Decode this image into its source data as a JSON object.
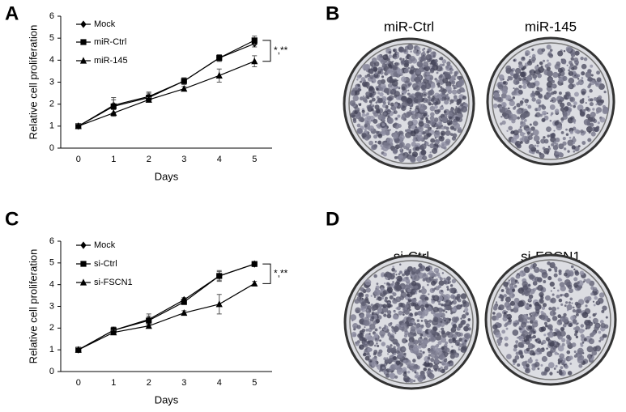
{
  "chart_data": [
    {
      "type": "line",
      "xlabel": "Days",
      "ylabel": "Relative cell proliferation",
      "x": [
        0,
        1,
        2,
        3,
        4,
        5
      ],
      "xlim": [
        -0.5,
        5.5
      ],
      "xticks": [
        0,
        1,
        2,
        3,
        4,
        5
      ],
      "ylim": [
        0,
        6
      ],
      "yticks": [
        0,
        1,
        2,
        3,
        4,
        5,
        6
      ],
      "annotation": "*,**",
      "series": [
        {
          "name": "Mock",
          "color": "#000000",
          "marker": "diamond",
          "values": [
            1,
            1.95,
            2.35,
            3.05,
            4.1,
            4.75
          ],
          "errors": [
            0.1,
            0.35,
            0.2,
            0.15,
            0.15,
            0.15
          ]
        },
        {
          "name": "miR-Ctrl",
          "color": "#000000",
          "marker": "square",
          "values": [
            1,
            1.9,
            2.3,
            3.05,
            4.1,
            4.9
          ],
          "errors": [
            0.1,
            0.3,
            0.2,
            0.15,
            0.15,
            0.2
          ]
        },
        {
          "name": "miR-145",
          "color": "#000000",
          "marker": "triangle",
          "values": [
            1,
            1.6,
            2.2,
            2.7,
            3.3,
            3.95
          ],
          "errors": [
            0.1,
            0.15,
            0.1,
            0.1,
            0.3,
            0.25
          ]
        }
      ]
    },
    {
      "type": "line",
      "xlabel": "Days",
      "ylabel": "Relative cell proliferation",
      "x": [
        0,
        1,
        2,
        3,
        4,
        5
      ],
      "xlim": [
        -0.5,
        5.5
      ],
      "xticks": [
        0,
        1,
        2,
        3,
        4,
        5
      ],
      "ylim": [
        0,
        6
      ],
      "yticks": [
        0,
        1,
        2,
        3,
        4,
        5,
        6
      ],
      "annotation": "*,**",
      "series": [
        {
          "name": "Mock",
          "color": "#000000",
          "marker": "diamond",
          "values": [
            1,
            1.9,
            2.4,
            3.3,
            4.4,
            4.95
          ],
          "errors": [
            0.1,
            0.15,
            0.25,
            0.1,
            0.25,
            0.1
          ]
        },
        {
          "name": "si-Ctrl",
          "color": "#000000",
          "marker": "square",
          "values": [
            1,
            1.9,
            2.35,
            3.2,
            4.4,
            4.95
          ],
          "errors": [
            0.1,
            0.1,
            0.2,
            0.1,
            0.2,
            0.1
          ]
        },
        {
          "name": "si-FSCN1",
          "color": "#000000",
          "marker": "triangle",
          "values": [
            1,
            1.8,
            2.1,
            2.7,
            3.1,
            4.05
          ],
          "errors": [
            0.1,
            0.1,
            0.1,
            0.1,
            0.45,
            0.1
          ]
        }
      ]
    }
  ],
  "panels": {
    "a": "A",
    "b": "B",
    "c": "C",
    "d": "D",
    "b_plates": [
      "miR-Ctrl",
      "miR-145"
    ],
    "d_plates": [
      "si-Ctrl",
      "si-FSCN1"
    ]
  }
}
